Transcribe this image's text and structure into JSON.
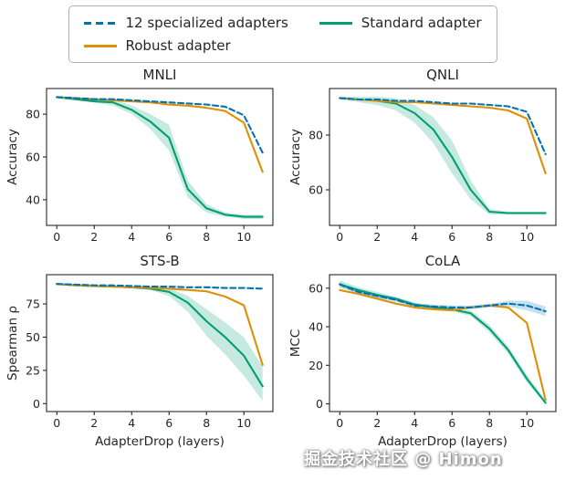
{
  "legend": {
    "items": [
      {
        "label": "12 specialized adapters",
        "color": "#0173b2",
        "dash": "dashed"
      },
      {
        "label": "Robust adapter",
        "color": "#de8f05",
        "dash": "solid"
      },
      {
        "label": "Standard adapter",
        "color": "#029e73",
        "dash": "solid"
      }
    ],
    "position": "top",
    "columns": 2
  },
  "watermark": "掘金技术社区 @ Himon",
  "colors": {
    "specialized": "#0173b2",
    "robust": "#de8f05",
    "standard": "#029e73",
    "axis": "#262626",
    "background": "#ffffff"
  },
  "chart_data": [
    {
      "type": "line",
      "title": "MNLI",
      "xlabel": "",
      "ylabel": "Accuracy",
      "x": [
        0,
        1,
        2,
        3,
        4,
        5,
        6,
        7,
        8,
        9,
        10,
        11
      ],
      "xlim": [
        -0.55,
        11.55
      ],
      "ylim": [
        28,
        92
      ],
      "xticks": [
        0,
        2,
        4,
        6,
        8,
        10
      ],
      "yticks": [
        40,
        60,
        80
      ],
      "grid": false,
      "series": [
        {
          "name": "12 specialized adapters",
          "color": "#0173b2",
          "style": "dashed",
          "values": [
            88,
            87.5,
            87,
            87,
            86.5,
            86,
            85.5,
            85,
            84.5,
            83.5,
            79.5,
            62
          ]
        },
        {
          "name": "Robust adapter",
          "color": "#de8f05",
          "style": "solid",
          "values": [
            88,
            87.5,
            87,
            86.5,
            86,
            85.5,
            84.5,
            84,
            83,
            81.5,
            76,
            53
          ]
        },
        {
          "name": "Standard adapter",
          "color": "#029e73",
          "style": "solid",
          "values": [
            88,
            87,
            86,
            85.5,
            82,
            76.5,
            69,
            45,
            36,
            33,
            32,
            32
          ],
          "band": {
            "lower": [
              87.5,
              86.5,
              85.5,
              84,
              80,
              73,
              63,
              41,
              34,
              32,
              31,
              31
            ],
            "upper": [
              88.5,
              87.5,
              86.5,
              87,
              84,
              80,
              75,
              49,
              38,
              34,
              33,
              33
            ]
          }
        }
      ]
    },
    {
      "type": "line",
      "title": "QNLI",
      "xlabel": "",
      "ylabel": "Accuracy",
      "x": [
        0,
        1,
        2,
        3,
        4,
        5,
        6,
        7,
        8,
        9,
        10,
        11
      ],
      "xlim": [
        -0.55,
        11.55
      ],
      "ylim": [
        47,
        97
      ],
      "xticks": [
        0,
        2,
        4,
        6,
        8,
        10
      ],
      "yticks": [
        60,
        80
      ],
      "grid": false,
      "series": [
        {
          "name": "12 specialized adapters",
          "color": "#0173b2",
          "style": "dashed",
          "values": [
            93.5,
            93,
            93,
            92.5,
            92.5,
            92,
            91.5,
            91.5,
            91,
            90.5,
            88.5,
            73
          ]
        },
        {
          "name": "Robust adapter",
          "color": "#de8f05",
          "style": "solid",
          "values": [
            93.5,
            93,
            92.5,
            92,
            92,
            91.5,
            91,
            90.5,
            90,
            89,
            86,
            66
          ]
        },
        {
          "name": "Standard adapter",
          "color": "#029e73",
          "style": "solid",
          "values": [
            93.5,
            93,
            92.5,
            91.5,
            88,
            82,
            72,
            60,
            52,
            51.5,
            51.5,
            51.5
          ],
          "band": {
            "lower": [
              93,
              92,
              91,
              89,
              84.5,
              77,
              66,
              56.5,
              51,
              51,
              51,
              51
            ],
            "upper": [
              94,
              94,
              94,
              93.5,
              91,
              86.5,
              78,
              63.5,
              53,
              52,
              52,
              52
            ]
          }
        }
      ]
    },
    {
      "type": "line",
      "title": "STS-B",
      "xlabel": "AdapterDrop (layers)",
      "ylabel": "Spearman ρ",
      "x": [
        0,
        1,
        2,
        3,
        4,
        5,
        6,
        7,
        8,
        9,
        10,
        11
      ],
      "xlim": [
        -0.55,
        11.55
      ],
      "ylim": [
        -6,
        97
      ],
      "xticks": [
        0,
        2,
        4,
        6,
        8,
        10
      ],
      "yticks": [
        0,
        25,
        50,
        75
      ],
      "grid": false,
      "series": [
        {
          "name": "12 specialized adapters",
          "color": "#0173b2",
          "style": "dashed",
          "values": [
            90,
            89.5,
            89,
            89,
            88.5,
            88,
            88,
            87.5,
            87.5,
            87,
            87,
            86.5
          ]
        },
        {
          "name": "Robust adapter",
          "color": "#de8f05",
          "style": "solid",
          "values": [
            90,
            89,
            88.5,
            88,
            87.5,
            87,
            86.5,
            85.5,
            84.5,
            80.5,
            74,
            29
          ]
        },
        {
          "name": "Standard adapter",
          "color": "#029e73",
          "style": "solid",
          "values": [
            90,
            89,
            88.5,
            88,
            87.5,
            86.5,
            84,
            76,
            62,
            50,
            36,
            13
          ],
          "band": {
            "lower": [
              89.5,
              88.5,
              88,
              87.5,
              86.5,
              85.5,
              81,
              69,
              51,
              37,
              21,
              2
            ],
            "upper": [
              90.5,
              89.5,
              89,
              88.5,
              88.5,
              87.5,
              87,
              81,
              71,
              61,
              50,
              28
            ]
          }
        }
      ]
    },
    {
      "type": "line",
      "title": "CoLA",
      "xlabel": "AdapterDrop (layers)",
      "ylabel": "MCC",
      "x": [
        0,
        1,
        2,
        3,
        4,
        5,
        6,
        7,
        8,
        9,
        10,
        11
      ],
      "xlim": [
        -0.55,
        11.55
      ],
      "ylim": [
        -4,
        67
      ],
      "xticks": [
        0,
        2,
        4,
        6,
        8,
        10
      ],
      "yticks": [
        0,
        20,
        40,
        60
      ],
      "grid": false,
      "series": [
        {
          "name": "12 specialized adapters",
          "color": "#0173b2",
          "style": "dashed",
          "values": [
            62,
            58,
            56,
            54,
            51,
            50.5,
            50,
            50,
            51,
            52,
            51,
            48
          ],
          "band": {
            "lower": [
              61,
              57,
              55,
              53,
              50,
              49.5,
              49,
              49,
              50,
              50.5,
              48.5,
              45.5
            ],
            "upper": [
              63,
              59,
              57,
              55,
              52,
              51.5,
              51,
              51,
              52,
              53.5,
              53.5,
              50.5
            ]
          }
        },
        {
          "name": "Robust adapter",
          "color": "#de8f05",
          "style": "solid",
          "values": [
            59,
            57,
            54.5,
            52,
            50,
            49,
            48.5,
            50,
            51,
            50,
            42,
            2
          ]
        },
        {
          "name": "Standard adapter",
          "color": "#029e73",
          "style": "solid",
          "values": [
            62,
            59,
            56.5,
            54.5,
            51.5,
            50,
            49,
            47,
            39,
            28,
            13,
            0.5
          ],
          "band": {
            "lower": [
              60,
              57.5,
              55,
              53.5,
              50.5,
              49,
              48,
              45.5,
              37,
              26,
              11,
              0
            ],
            "upper": [
              64,
              60.5,
              58,
              55.5,
              52.5,
              51,
              50,
              48.5,
              41,
              30,
              15,
              2
            ]
          }
        }
      ]
    }
  ]
}
